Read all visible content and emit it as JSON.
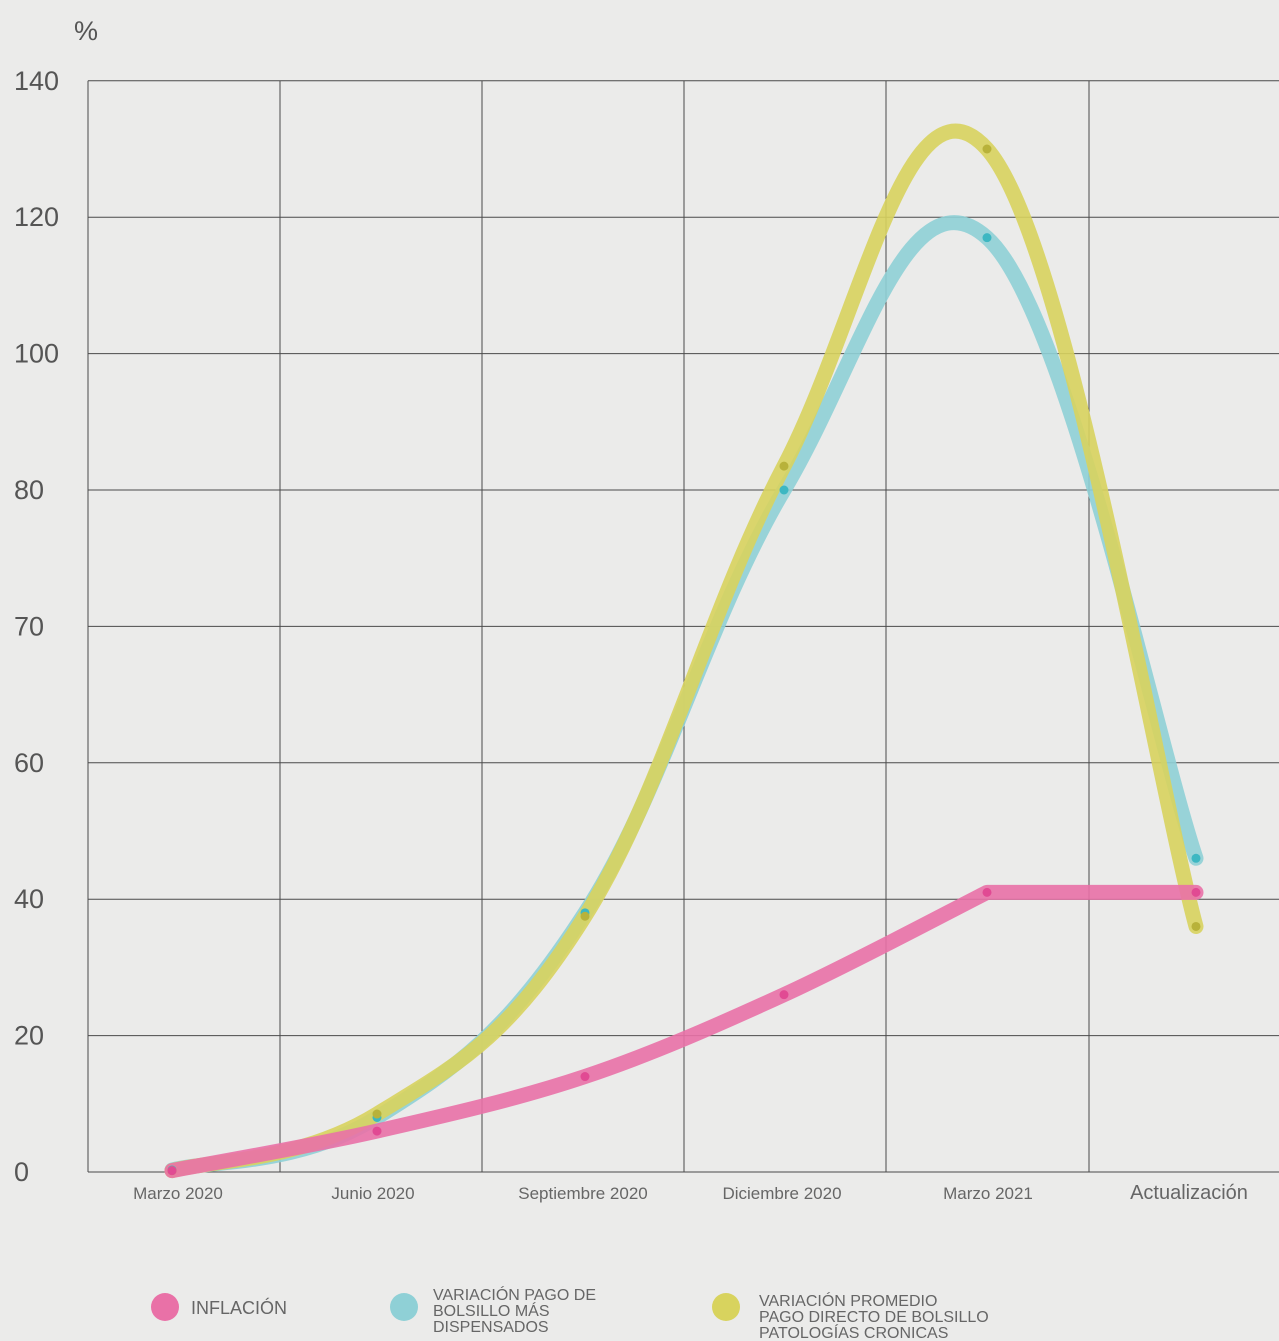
{
  "chart_data": {
    "type": "line",
    "ylabel": "%",
    "categories": [
      "Marzo 2020",
      "Junio 2020",
      "Septiembre 2020",
      "Diciembre 2020",
      "Marzo 2021",
      "Actualización"
    ],
    "y_tick_labels": [
      "0",
      "20",
      "40",
      "60",
      "70",
      "80",
      "100",
      "120",
      "140"
    ],
    "grid": true,
    "legend_position": "bottom",
    "series": [
      {
        "name": "INFLACIÓN",
        "color": "#e971a7",
        "points": [
          {
            "category": "Marzo 2020",
            "value": 0.2
          },
          {
            "category": "Junio 2020",
            "value": 6
          },
          {
            "category": "Septiembre 2020",
            "value": 14
          },
          {
            "category": "Diciembre 2020",
            "value": 26
          },
          {
            "category": "Marzo 2021",
            "value": 41
          },
          {
            "category": "Actualización",
            "value": 41
          }
        ]
      },
      {
        "name": "VARIACIÓN PAGO DE BOLSILLO MÁS DISPENSADOS",
        "color": "#8fd0d6",
        "points": [
          {
            "category": "Marzo 2020",
            "value": 0.3
          },
          {
            "category": "Junio 2020",
            "value": 8
          },
          {
            "category": "Septiembre 2020",
            "value": 38
          },
          {
            "category": "Diciembre 2020",
            "value": 80
          },
          {
            "category": "Marzo 2021",
            "value": 117
          },
          {
            "category": "Actualización",
            "value": 46
          }
        ]
      },
      {
        "name": "VARIACIÓN PROMEDIO PAGO DIRECTO DE BOLSILLO PATOLOGÍAS CRONICAS",
        "color": "#d8d35e",
        "points": [
          {
            "category": "Marzo 2020",
            "value": 0.2
          },
          {
            "category": "Junio 2020",
            "value": 8.5
          },
          {
            "category": "Septiembre 2020",
            "value": 37.5
          },
          {
            "category": "Diciembre 2020",
            "value": 83.5
          },
          {
            "category": "Marzo 2021",
            "value": 130
          },
          {
            "category": "Actualización",
            "value": 36
          }
        ]
      }
    ],
    "legend": [
      {
        "lines": [
          "INFLACIÓN"
        ],
        "color": "#e971a7"
      },
      {
        "lines": [
          "VARIACIÓN PAGO DE",
          "BOLSILLO MÁS",
          "DISPENSADOS"
        ],
        "color": "#8fd0d6"
      },
      {
        "lines": [
          "VARIACIÓN PROMEDIO",
          "PAGO DIRECTO DE BOLSILLO",
          "PATOLOGÍAS CRONICAS"
        ],
        "color": "#d8d35e"
      }
    ]
  }
}
